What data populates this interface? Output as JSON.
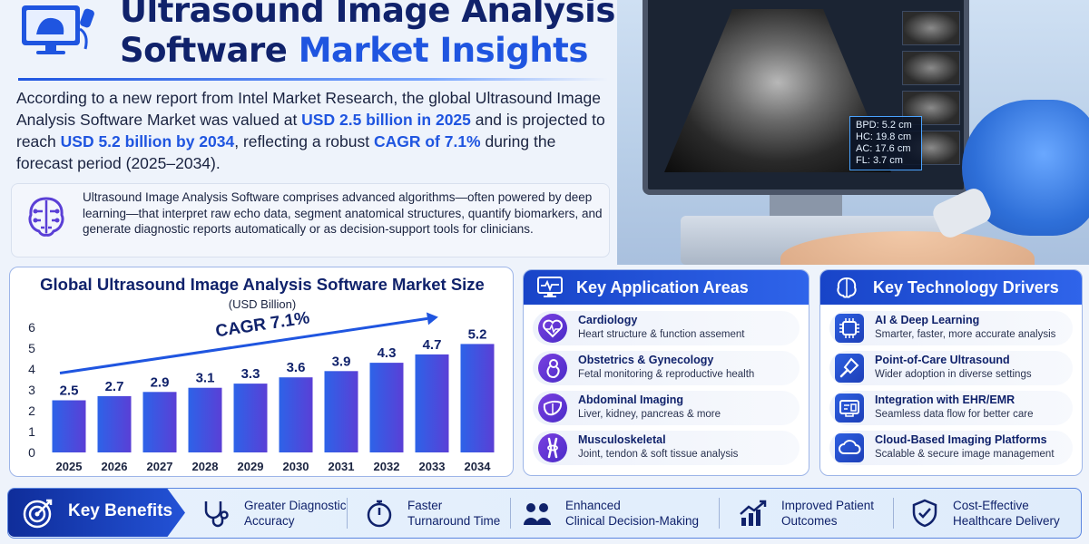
{
  "header": {
    "title_line1": "Ultrasound Image Analysis",
    "title_line2_a": "Software ",
    "title_line2_b": "Market Insights"
  },
  "intro": {
    "p1": "According to a new report from Intel Market Research, the global Ultrasound Image Analysis Software Market was valued at ",
    "h1": "USD 2.5 billion in 2025",
    "p2": " and is projected to reach ",
    "h2": "USD 5.2 billion by 2034",
    "p3": ", reflecting a robust ",
    "h3": "CAGR of 7.1%",
    "p4": " during the forecast period (2025–2034)."
  },
  "description": "Ultrasound Image Analysis Software comprises advanced algorithms—often powered by deep learning—that interpret raw echo data, segment anatomical structures, quantify biomarkers, and generate diagnostic reports automatically or as decision-support tools for clinicians.",
  "photo": {
    "readout": [
      "BPD: 5.2 cm",
      "HC:   19.8 cm",
      "AC:   17.6 cm",
      "FL:   3.7 cm"
    ]
  },
  "chart_data": {
    "type": "bar",
    "title": "Global Ultrasound Image Analysis Software Market Size",
    "subtitle": "(USD Billion)",
    "annotation": "CAGR 7.1%",
    "categories": [
      "2025",
      "2026",
      "2027",
      "2028",
      "2029",
      "2030",
      "2031",
      "2032",
      "2033",
      "2034"
    ],
    "values": [
      2.5,
      2.7,
      2.9,
      3.1,
      3.3,
      3.6,
      3.9,
      4.3,
      4.7,
      5.2
    ],
    "ylim": [
      0,
      6
    ],
    "yticks": [
      0,
      1,
      2,
      3,
      4,
      5,
      6
    ],
    "grid": false,
    "colors": {
      "bar_start": "#2d63e8",
      "bar_end": "#5a3fd6",
      "label": "#10226b"
    }
  },
  "applications": {
    "title": "Key Application Areas",
    "items": [
      {
        "title": "Cardiology",
        "sub": "Heart structure & function assement",
        "icon": "heart-pulse-icon"
      },
      {
        "title": "Obstetrics & Gynecology",
        "sub": "Fetal monitoring & reproductive health",
        "icon": "fetus-icon"
      },
      {
        "title": "Abdominal Imaging",
        "sub": "Liver, kidney, pancreas & more",
        "icon": "liver-icon"
      },
      {
        "title": "Musculoskeletal",
        "sub": "Joint, tendon & soft tissue analysis",
        "icon": "bone-joint-icon"
      }
    ]
  },
  "drivers": {
    "title": "Key Technology Drivers",
    "items": [
      {
        "title": "AI & Deep Learning",
        "sub": "Smarter, faster, more accurate analysis",
        "icon": "ai-chip-icon"
      },
      {
        "title": "Point-of-Care Ultrasound",
        "sub": "Wider adoption in diverse settings",
        "icon": "probe-icon"
      },
      {
        "title": "Integration with EHR/EMR",
        "sub": "Seamless data flow for better care",
        "icon": "ehr-icon"
      },
      {
        "title": "Cloud-Based Imaging Platforms",
        "sub": "Scalable & secure image management",
        "icon": "cloud-icon"
      }
    ]
  },
  "benefits": {
    "label": "Key Benefits",
    "items": [
      {
        "text": "Greater Diagnostic\nAccuracy",
        "icon": "stethoscope-icon"
      },
      {
        "text": "Faster\nTurnaround Time",
        "icon": "stopwatch-icon"
      },
      {
        "text": "Enhanced\nClinical Decision-Making",
        "icon": "team-icon"
      },
      {
        "text": "Improved Patient\nOutcomes",
        "icon": "growth-chart-icon"
      },
      {
        "text": "Cost-Effective\nHealthcare Delivery",
        "icon": "shield-check-icon"
      }
    ]
  }
}
